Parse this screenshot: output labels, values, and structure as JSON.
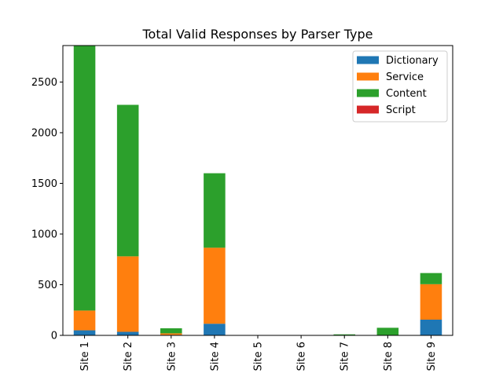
{
  "chart_data": {
    "type": "bar",
    "stacked": true,
    "title": "Total Valid Responses by Parser Type",
    "xlabel": "",
    "ylabel": "",
    "categories": [
      "Site 1",
      "Site 2",
      "Site 3",
      "Site 4",
      "Site 5",
      "Site 6",
      "Site 7",
      "Site 8",
      "Site 9"
    ],
    "series": [
      {
        "name": "Dictionary",
        "color": "#1f77b4",
        "values": [
          50,
          35,
          5,
          115,
          0,
          0,
          0,
          0,
          155
        ]
      },
      {
        "name": "Service",
        "color": "#ff7f0e",
        "values": [
          195,
          745,
          15,
          750,
          0,
          0,
          2,
          3,
          350
        ]
      },
      {
        "name": "Content",
        "color": "#2ca02c",
        "values": [
          2615,
          1495,
          50,
          735,
          0,
          0,
          8,
          72,
          110
        ]
      },
      {
        "name": "Script",
        "color": "#d62728",
        "values": [
          0,
          0,
          0,
          0,
          0,
          0,
          0,
          0,
          0
        ]
      }
    ],
    "ylim": [
      0,
      2860
    ],
    "yticks": [
      0,
      500,
      1000,
      1500,
      2000,
      2500
    ],
    "grid": false,
    "legend": "top-right"
  }
}
